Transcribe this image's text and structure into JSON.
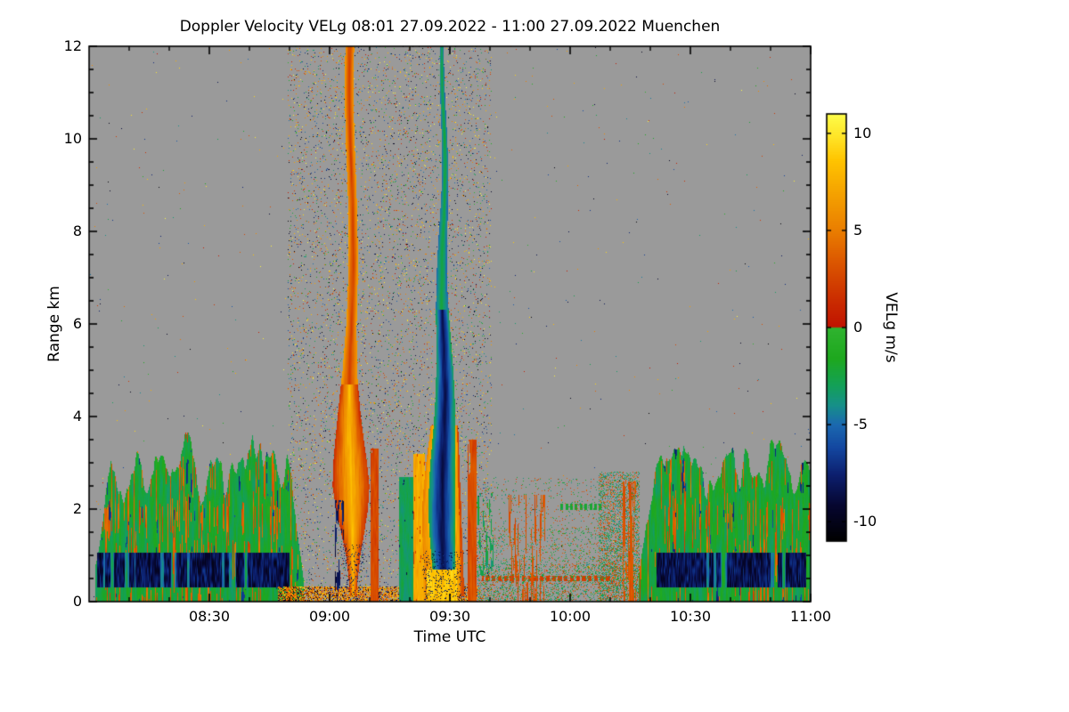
{
  "chart_data": {
    "type": "heatmap",
    "title": "Doppler Velocity VELg  08:01 27.09.2022 - 11:00 27.09.2022 Muenchen",
    "xlabel": "Time UTC",
    "ylabel": "Range km",
    "x_range_utc": [
      "08:00",
      "11:00"
    ],
    "data_start_utc": "08:01",
    "x_ticks": [
      "08:30",
      "09:00",
      "09:30",
      "10:00",
      "10:30",
      "11:00"
    ],
    "x_tick_minutes": [
      30,
      60,
      90,
      120,
      150,
      180
    ],
    "x_minor_tick_minutes": [
      10,
      20,
      40,
      50,
      70,
      80,
      100,
      110,
      130,
      140,
      160,
      170
    ],
    "y_ticks": [
      0,
      2,
      4,
      6,
      8,
      10,
      12
    ],
    "ylim": [
      0,
      12
    ],
    "no_data_color": "#9a9a9a",
    "colorbar": {
      "label": "VELg m/s",
      "ticks": [
        10,
        5,
        0,
        -5,
        -10
      ],
      "range": [
        -11,
        11
      ],
      "stops": [
        [
          -11,
          "#000000"
        ],
        [
          -9.2,
          "#06062f"
        ],
        [
          -7.6,
          "#0c1f6e"
        ],
        [
          -6.2,
          "#1347a0"
        ],
        [
          -5.0,
          "#1b69b0"
        ],
        [
          -4.0,
          "#169089"
        ],
        [
          -3.0,
          "#13a058"
        ],
        [
          -1.6,
          "#1ea81e"
        ],
        [
          -0.03,
          "#2fb32f"
        ],
        [
          0.03,
          "#c01300"
        ],
        [
          1.6,
          "#cc3000"
        ],
        [
          3.2,
          "#da5300"
        ],
        [
          5.0,
          "#ea7e00"
        ],
        [
          7.0,
          "#f5a400"
        ],
        [
          8.6,
          "#ffc400"
        ],
        [
          9.8,
          "#ffe427"
        ],
        [
          11,
          "#fdfd4a"
        ]
      ]
    },
    "plumes": [
      {
        "name": "positive-velocity-plume",
        "center_utc": "09:05",
        "center_min": 65.4,
        "height_km": [
          0.15,
          12
        ],
        "half_width_profile_min": [
          [
            0.15,
            0.8
          ],
          [
            0.4,
            1.0
          ],
          [
            1,
            1.8
          ],
          [
            1.5,
            2.9
          ],
          [
            2,
            4.0
          ],
          [
            2.5,
            4.6
          ],
          [
            3,
            4.2
          ],
          [
            4,
            2.9
          ],
          [
            5,
            1.8
          ],
          [
            6,
            1.3
          ],
          [
            8,
            1.1
          ],
          [
            12,
            1.1
          ]
        ],
        "description": "Narrow red column (+2 m/s) aloft widening below 4.5 km into a yellow-orange cone (+8 to +10 m/s) with red rim"
      },
      {
        "name": "negative-velocity-plume",
        "center_utc": "09:28",
        "center_min": 88.4,
        "height_km": [
          0.1,
          12
        ],
        "half_width_profile_min": [
          [
            0.2,
            2.5
          ],
          [
            1,
            3.0
          ],
          [
            2,
            3.4
          ],
          [
            3,
            3.1
          ],
          [
            4,
            2.6
          ],
          [
            5.5,
            1.9
          ],
          [
            7,
            1.3
          ],
          [
            9,
            0.8
          ],
          [
            12,
            0.5
          ]
        ],
        "description": "Green spike aloft, dark navy core (-9 m/s) below 6 km, flanked by yellow and red columns (+2 to +9 m/s) below 3.5 km"
      }
    ],
    "features": [
      {
        "name": "left-boundary-layer",
        "time_utc": [
          "08:02",
          "08:53"
        ],
        "height_km": [
          0,
          3.8
        ],
        "dominant_velocity_ms": -2,
        "description": "Turbulent green layer (-1 to -4 m/s) with embedded red updraft streaks (+2 to +6 m/s)"
      },
      {
        "name": "left-near-ground-band",
        "time_utc": [
          "08:02",
          "08:50"
        ],
        "height_km": [
          0.3,
          1.0
        ],
        "dominant_velocity_ms": -8,
        "description": "Dark navy blocky band near ground"
      },
      {
        "name": "clear-air-noise-band",
        "time_utc": [
          "08:50",
          "09:40"
        ],
        "height_km": [
          0,
          12
        ],
        "description": "Sparse random multicolour speckle over gray no-data background"
      },
      {
        "name": "ground-clutter",
        "time_utc": [
          "08:47",
          "09:37"
        ],
        "height_km": [
          0,
          0.3
        ],
        "description": "Dense yellow/orange/red and black clutter along the ground"
      },
      {
        "name": "mid-debris",
        "time_utc": [
          "09:37",
          "10:17"
        ],
        "height_km": [
          0,
          2.7
        ],
        "description": "Sparse green/red speckle, dashed red line near 0.5 km, red streak clusters near 09:45-09:55 and 10:13-10:16"
      },
      {
        "name": "right-boundary-layer",
        "time_utc": [
          "10:17",
          "11:00"
        ],
        "height_km": [
          0,
          3.8
        ],
        "dominant_velocity_ms": -2,
        "description": "Turbulent green layer with red streaks"
      },
      {
        "name": "right-near-ground-band",
        "time_utc": [
          "10:21",
          "10:59"
        ],
        "height_km": [
          0.3,
          1.0
        ],
        "dominant_velocity_ms": -8,
        "description": "Dark navy blocky band near ground"
      }
    ]
  }
}
